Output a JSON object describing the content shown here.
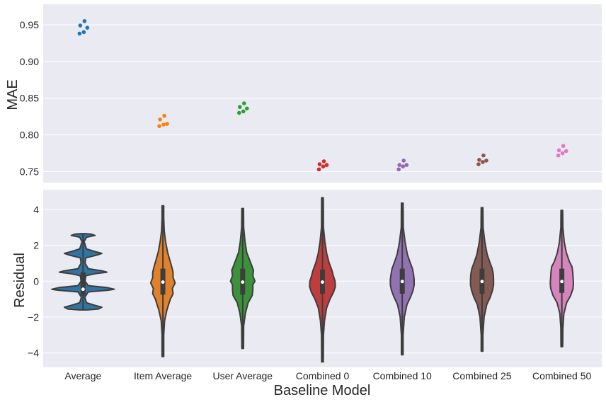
{
  "chart_data": [
    {
      "type": "scatter",
      "subtype": "swarm",
      "ylabel": "MAE",
      "ylim": [
        0.735,
        0.978
      ],
      "yticks": [
        "0.75",
        "0.80",
        "0.85",
        "0.90",
        "0.95"
      ],
      "categories": [
        "Average",
        "Item Average",
        "User Average",
        "Combined 0",
        "Combined 10",
        "Combined 25",
        "Combined 50"
      ],
      "colors": [
        "#1f77b4",
        "#ff7f0e",
        "#2ca02c",
        "#d62728",
        "#9467bd",
        "#8c564b",
        "#e377c2"
      ],
      "series": [
        {
          "category": "Average",
          "values": [
            0.938,
            0.94,
            0.946,
            0.949,
            0.955
          ]
        },
        {
          "category": "Item Average",
          "values": [
            0.812,
            0.814,
            0.815,
            0.821,
            0.826
          ]
        },
        {
          "category": "User Average",
          "values": [
            0.83,
            0.832,
            0.836,
            0.838,
            0.843
          ]
        },
        {
          "category": "Combined 0",
          "values": [
            0.753,
            0.757,
            0.759,
            0.76,
            0.764
          ]
        },
        {
          "category": "Combined 10",
          "values": [
            0.753,
            0.757,
            0.759,
            0.759,
            0.765
          ]
        },
        {
          "category": "Combined 25",
          "values": [
            0.76,
            0.763,
            0.765,
            0.766,
            0.772
          ]
        },
        {
          "category": "Combined 50",
          "values": [
            0.772,
            0.775,
            0.778,
            0.779,
            0.785
          ]
        }
      ],
      "grid": true
    },
    {
      "type": "violin",
      "xlabel": "Baseline Model",
      "ylabel": "Residual",
      "ylim": [
        -4.8,
        5.1
      ],
      "yticks": [
        "−4",
        "−2",
        "0",
        "2",
        "4"
      ],
      "categories": [
        "Average",
        "Item Average",
        "User Average",
        "Combined 0",
        "Combined 10",
        "Combined 25",
        "Combined 50"
      ],
      "colors": [
        "#3274a1",
        "#e1812c",
        "#3a923a",
        "#c03d3e",
        "#9372b2",
        "#845b53",
        "#d684bd"
      ],
      "series": [
        {
          "category": "Average",
          "min": -1.6,
          "max": 2.65,
          "q1": -0.8,
          "median": -0.45,
          "q3": 0.5,
          "density": [
            [
              -1.6,
              0.12
            ],
            [
              -1.55,
              0.45
            ],
            [
              -1.45,
              0.55
            ],
            [
              -1.35,
              0.35
            ],
            [
              -1.2,
              0.1
            ],
            [
              -0.9,
              0.05
            ],
            [
              -0.6,
              0.15
            ],
            [
              -0.5,
              0.75
            ],
            [
              -0.45,
              0.92
            ],
            [
              -0.35,
              0.7
            ],
            [
              -0.25,
              0.15
            ],
            [
              0.0,
              0.06
            ],
            [
              0.3,
              0.08
            ],
            [
              0.42,
              0.35
            ],
            [
              0.5,
              0.7
            ],
            [
              0.58,
              0.55
            ],
            [
              0.7,
              0.15
            ],
            [
              1.0,
              0.06
            ],
            [
              1.3,
              0.08
            ],
            [
              1.45,
              0.4
            ],
            [
              1.55,
              0.55
            ],
            [
              1.65,
              0.35
            ],
            [
              1.8,
              0.1
            ],
            [
              2.2,
              0.03
            ],
            [
              2.45,
              0.1
            ],
            [
              2.55,
              0.35
            ],
            [
              2.62,
              0.25
            ],
            [
              2.65,
              0.05
            ]
          ]
        },
        {
          "category": "Item Average",
          "min": -4.2,
          "max": 4.2,
          "q1": -0.75,
          "median": -0.05,
          "q3": 0.7,
          "density": [
            [
              -4.2,
              0.01
            ],
            [
              -3.0,
              0.02
            ],
            [
              -2.2,
              0.05
            ],
            [
              -1.6,
              0.12
            ],
            [
              -1.0,
              0.22
            ],
            [
              -0.7,
              0.3
            ],
            [
              -0.4,
              0.28
            ],
            [
              -0.1,
              0.36
            ],
            [
              0.2,
              0.3
            ],
            [
              0.5,
              0.3
            ],
            [
              0.8,
              0.26
            ],
            [
              1.2,
              0.2
            ],
            [
              1.6,
              0.14
            ],
            [
              2.2,
              0.08
            ],
            [
              2.8,
              0.04
            ],
            [
              3.5,
              0.02
            ],
            [
              4.2,
              0.01
            ]
          ]
        },
        {
          "category": "User Average",
          "min": -3.75,
          "max": 4.05,
          "q1": -0.75,
          "median": -0.05,
          "q3": 0.7,
          "density": [
            [
              -3.75,
              0.01
            ],
            [
              -2.5,
              0.03
            ],
            [
              -1.8,
              0.08
            ],
            [
              -1.2,
              0.16
            ],
            [
              -0.8,
              0.28
            ],
            [
              -0.5,
              0.3
            ],
            [
              -0.2,
              0.3
            ],
            [
              0.0,
              0.36
            ],
            [
              0.3,
              0.3
            ],
            [
              0.6,
              0.32
            ],
            [
              0.9,
              0.26
            ],
            [
              1.2,
              0.2
            ],
            [
              1.6,
              0.12
            ],
            [
              2.2,
              0.07
            ],
            [
              3.0,
              0.03
            ],
            [
              4.05,
              0.01
            ]
          ]
        },
        {
          "category": "Combined 0",
          "min": -4.5,
          "max": 4.65,
          "q1": -0.7,
          "median": -0.05,
          "q3": 0.65,
          "density": [
            [
              -4.5,
              0.01
            ],
            [
              -3.0,
              0.03
            ],
            [
              -2.2,
              0.06
            ],
            [
              -1.5,
              0.12
            ],
            [
              -1.0,
              0.22
            ],
            [
              -0.6,
              0.33
            ],
            [
              -0.3,
              0.38
            ],
            [
              0.0,
              0.37
            ],
            [
              0.3,
              0.32
            ],
            [
              0.6,
              0.28
            ],
            [
              1.0,
              0.2
            ],
            [
              1.5,
              0.13
            ],
            [
              2.2,
              0.07
            ],
            [
              3.0,
              0.03
            ],
            [
              4.65,
              0.01
            ]
          ]
        },
        {
          "category": "Combined 10",
          "min": -4.1,
          "max": 4.35,
          "q1": -0.7,
          "median": -0.02,
          "q3": 0.7,
          "density": [
            [
              -4.1,
              0.01
            ],
            [
              -3.0,
              0.02
            ],
            [
              -2.0,
              0.06
            ],
            [
              -1.3,
              0.14
            ],
            [
              -0.9,
              0.24
            ],
            [
              -0.5,
              0.32
            ],
            [
              -0.2,
              0.35
            ],
            [
              0.1,
              0.35
            ],
            [
              0.4,
              0.33
            ],
            [
              0.7,
              0.3
            ],
            [
              1.0,
              0.24
            ],
            [
              1.5,
              0.15
            ],
            [
              2.2,
              0.08
            ],
            [
              3.0,
              0.03
            ],
            [
              4.35,
              0.01
            ]
          ]
        },
        {
          "category": "Combined 25",
          "min": -3.9,
          "max": 4.1,
          "q1": -0.7,
          "median": -0.02,
          "q3": 0.7,
          "density": [
            [
              -3.9,
              0.01
            ],
            [
              -3.0,
              0.02
            ],
            [
              -2.0,
              0.06
            ],
            [
              -1.3,
              0.14
            ],
            [
              -0.9,
              0.24
            ],
            [
              -0.5,
              0.31
            ],
            [
              -0.2,
              0.34
            ],
            [
              0.1,
              0.34
            ],
            [
              0.4,
              0.33
            ],
            [
              0.7,
              0.3
            ],
            [
              1.0,
              0.24
            ],
            [
              1.5,
              0.15
            ],
            [
              2.2,
              0.08
            ],
            [
              3.0,
              0.03
            ],
            [
              4.1,
              0.01
            ]
          ]
        },
        {
          "category": "Combined 50",
          "min": -3.65,
          "max": 3.95,
          "q1": -0.65,
          "median": -0.02,
          "q3": 0.7,
          "density": [
            [
              -3.65,
              0.01
            ],
            [
              -2.6,
              0.03
            ],
            [
              -1.8,
              0.06
            ],
            [
              -1.2,
              0.14
            ],
            [
              -0.8,
              0.26
            ],
            [
              -0.4,
              0.33
            ],
            [
              -0.1,
              0.34
            ],
            [
              0.2,
              0.33
            ],
            [
              0.5,
              0.32
            ],
            [
              0.8,
              0.3
            ],
            [
              1.1,
              0.22
            ],
            [
              1.6,
              0.13
            ],
            [
              2.2,
              0.07
            ],
            [
              3.0,
              0.03
            ],
            [
              3.95,
              0.01
            ]
          ]
        }
      ],
      "grid": true
    }
  ],
  "style": {
    "panel_bg": "#eaeaf2",
    "grid_color": "#ffffff",
    "line_color": "#3d3d3d"
  }
}
